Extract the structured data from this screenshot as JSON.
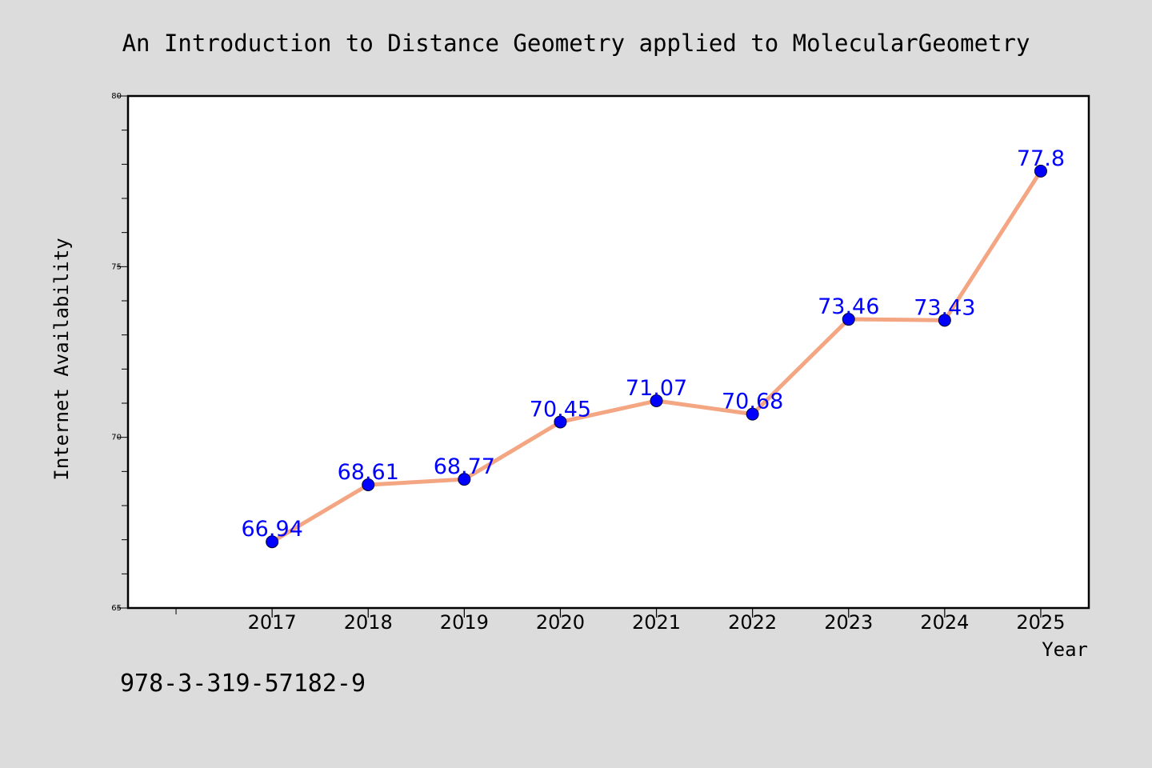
{
  "chart_data": {
    "type": "line",
    "title": "An Introduction to Distance Geometry applied to MolecularGeometry",
    "xlabel": "Year",
    "ylabel": "Internet Availability",
    "x": [
      "2017",
      "2018",
      "2019",
      "2020",
      "2021",
      "2022",
      "2023",
      "2024",
      "2025"
    ],
    "series": [
      {
        "values": [
          66.94,
          68.61,
          68.77,
          70.45,
          71.07,
          70.68,
          73.46,
          73.43,
          77.8
        ],
        "data_labels": [
          "66.94",
          "68.61",
          "68.77",
          "70.45",
          "71.07",
          "70.68",
          "73.46",
          "73.43",
          "77.8"
        ]
      }
    ],
    "ylim": [
      65,
      80
    ],
    "xlim": [
      2015.5,
      2025.5
    ],
    "y_ticks": [
      {
        "value": 65,
        "label": "65"
      },
      {
        "value": 70,
        "label": "70"
      },
      {
        "value": 75,
        "label": "75"
      },
      {
        "value": 80,
        "label": "80"
      }
    ],
    "y_minor_step": 1,
    "x_extra_tick": 2016,
    "grid": false,
    "legend": "none",
    "footer_text": "978-3-319-57182-9",
    "colors": {
      "background": "#dcdcdc",
      "plot_background": "#ffffff",
      "line": "#f4a582",
      "marker": "#0000ff",
      "data_label": "#0000ff",
      "text": "#000000"
    }
  }
}
